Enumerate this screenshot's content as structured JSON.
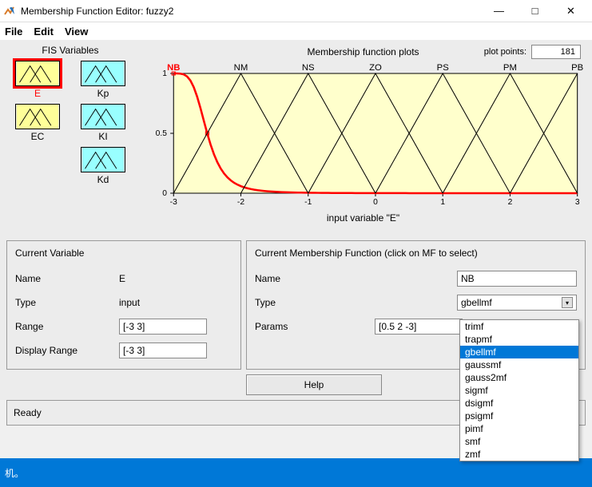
{
  "window": {
    "title": "Membership Function Editor: fuzzy2",
    "min": "—",
    "max": "□",
    "close": "✕"
  },
  "menu": {
    "file": "File",
    "edit": "Edit",
    "view": "View"
  },
  "fis": {
    "title": "FIS Variables",
    "vars": [
      {
        "name": "E",
        "color": "#ffff99",
        "selected": true
      },
      {
        "name": "Kp",
        "color": "#99ffff",
        "selected": false
      },
      {
        "name": "EC",
        "color": "#ffff99",
        "selected": false
      },
      {
        "name": "KI",
        "color": "#99ffff",
        "selected": false
      },
      {
        "name": "",
        "color": "",
        "selected": false
      },
      {
        "name": "Kd",
        "color": "#99ffff",
        "selected": false
      }
    ]
  },
  "plot": {
    "title": "Membership function plots",
    "plot_points_label": "plot points:",
    "plot_points": "181",
    "xlabel": "input variable \"E\"",
    "bg_color": "#ffffcc",
    "axis_color": "#000000",
    "grid_color": "#cccccc",
    "selected_color": "#ff0000",
    "line_color": "#000000",
    "xlim": [
      -3,
      3
    ],
    "ylim": [
      0,
      1
    ],
    "xticks": [
      -3,
      -2,
      -1,
      0,
      1,
      2,
      3
    ],
    "yticks": [
      0,
      0.5,
      1
    ],
    "mf_labels": [
      "NB",
      "NM",
      "NS",
      "ZO",
      "PS",
      "PM",
      "PB"
    ],
    "mf_centers": [
      -3,
      -2,
      -1,
      0,
      1,
      2,
      3
    ],
    "mf_halfwidth": 1,
    "selected_mf": "NB",
    "gbellmf_params": {
      "a": 0.5,
      "b": 2,
      "c": -3
    }
  },
  "current_var": {
    "title": "Current Variable",
    "name_label": "Name",
    "name": "E",
    "type_label": "Type",
    "type": "input",
    "range_label": "Range",
    "range": "[-3 3]",
    "disp_range_label": "Display Range",
    "disp_range": "[-3 3]"
  },
  "current_mf": {
    "title": "Current Membership Function (click on MF to select)",
    "name_label": "Name",
    "name": "NB",
    "type_label": "Type",
    "type": "gbellmf",
    "params_label": "Params",
    "params": "[0.5 2 -3]"
  },
  "dropdown": {
    "options": [
      "trimf",
      "trapmf",
      "gbellmf",
      "gaussmf",
      "gauss2mf",
      "sigmf",
      "dsigmf",
      "psigmf",
      "pimf",
      "smf",
      "zmf"
    ],
    "selected": "gbellmf"
  },
  "help": {
    "label": "Help"
  },
  "status": {
    "text": "Ready"
  },
  "taskbar": {
    "text": "机。"
  }
}
